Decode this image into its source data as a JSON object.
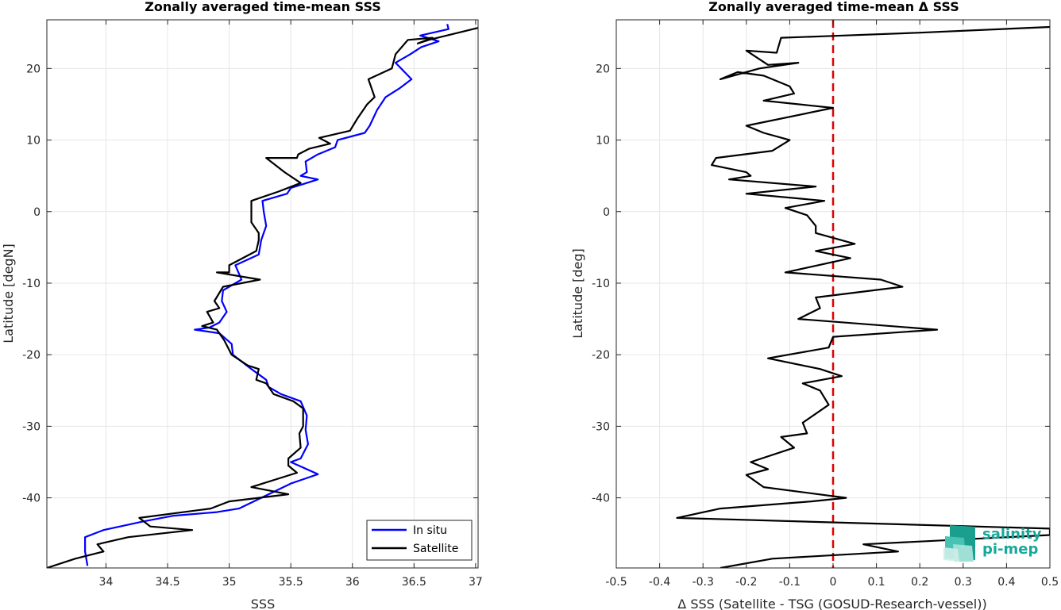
{
  "chart_data": [
    {
      "type": "line",
      "title": "Zonally averaged time-mean SSS",
      "xlabel": "SSS",
      "ylabel": "Latitude [degN]",
      "xlim": [
        33.52,
        37.02
      ],
      "ylim": [
        -49.8,
        26.8
      ],
      "xticks": [
        34,
        34.5,
        35,
        35.5,
        36,
        36.5,
        37
      ],
      "yticks": [
        -40,
        -30,
        -20,
        -10,
        0,
        10,
        20
      ],
      "grid": true,
      "legend_position": "bottom-right",
      "series": [
        {
          "name": "In situ",
          "color": "#0000ff",
          "points": [
            [
              36.77,
              26.2
            ],
            [
              36.78,
              25.5
            ],
            [
              36.55,
              24.6
            ],
            [
              36.7,
              23.8
            ],
            [
              36.56,
              23.0
            ],
            [
              36.47,
              22.0
            ],
            [
              36.35,
              20.8
            ],
            [
              36.48,
              18.5
            ],
            [
              36.38,
              17.2
            ],
            [
              36.27,
              16.0
            ],
            [
              36.2,
              14.2
            ],
            [
              36.14,
              12.0
            ],
            [
              36.1,
              11.0
            ],
            [
              35.88,
              10.0
            ],
            [
              35.86,
              9.0
            ],
            [
              35.72,
              8.0
            ],
            [
              35.62,
              7.0
            ],
            [
              35.63,
              5.5
            ],
            [
              35.58,
              5.0
            ],
            [
              35.72,
              4.5
            ],
            [
              35.5,
              3.3
            ],
            [
              35.47,
              2.5
            ],
            [
              35.27,
              1.5
            ],
            [
              35.28,
              0.0
            ],
            [
              35.3,
              -2.0
            ],
            [
              35.26,
              -4.0
            ],
            [
              35.24,
              -6.0
            ],
            [
              35.05,
              -7.5
            ],
            [
              35.1,
              -9.5
            ],
            [
              34.95,
              -11.0
            ],
            [
              34.94,
              -12.5
            ],
            [
              34.98,
              -14.0
            ],
            [
              34.92,
              -15.5
            ],
            [
              34.84,
              -16.2
            ],
            [
              34.72,
              -16.5
            ],
            [
              34.92,
              -17.0
            ],
            [
              35.02,
              -18.5
            ],
            [
              35.03,
              -20.0
            ],
            [
              35.18,
              -22.0
            ],
            [
              35.3,
              -23.5
            ],
            [
              35.32,
              -24.5
            ],
            [
              35.42,
              -25.5
            ],
            [
              35.58,
              -26.5
            ],
            [
              35.63,
              -28.5
            ],
            [
              35.62,
              -30.5
            ],
            [
              35.64,
              -32.5
            ],
            [
              35.58,
              -34.5
            ],
            [
              35.5,
              -35.0
            ],
            [
              35.72,
              -36.7
            ],
            [
              35.5,
              -38.0
            ],
            [
              35.2,
              -40.5
            ],
            [
              35.08,
              -41.5
            ],
            [
              34.9,
              -42.0
            ],
            [
              34.55,
              -42.5
            ],
            [
              34.3,
              -43.3
            ],
            [
              33.98,
              -44.5
            ],
            [
              33.83,
              -45.5
            ],
            [
              33.83,
              -47.5
            ],
            [
              33.85,
              -49.5
            ]
          ]
        },
        {
          "name": "Satellite",
          "color": "#000000",
          "points": [
            [
              37.05,
              25.8
            ],
            [
              36.62,
              24.0
            ],
            [
              36.53,
              23.5
            ],
            [
              36.65,
              24.3
            ],
            [
              36.45,
              24.0
            ],
            [
              36.35,
              22.0
            ],
            [
              36.32,
              20.0
            ],
            [
              36.13,
              18.5
            ],
            [
              36.18,
              16.0
            ],
            [
              36.12,
              15.0
            ],
            [
              36.04,
              13.0
            ],
            [
              35.98,
              11.3
            ],
            [
              35.73,
              10.3
            ],
            [
              35.82,
              9.5
            ],
            [
              35.65,
              8.8
            ],
            [
              35.56,
              8.0
            ],
            [
              35.55,
              7.5
            ],
            [
              35.3,
              7.5
            ],
            [
              35.45,
              5.5
            ],
            [
              35.58,
              4.0
            ],
            [
              35.4,
              2.8
            ],
            [
              35.18,
              1.5
            ],
            [
              35.18,
              -1.5
            ],
            [
              35.24,
              -3.0
            ],
            [
              35.24,
              -4.0
            ],
            [
              35.22,
              -5.5
            ],
            [
              35.0,
              -7.5
            ],
            [
              35.0,
              -8.5
            ],
            [
              34.9,
              -8.5
            ],
            [
              35.25,
              -9.5
            ],
            [
              34.95,
              -10.5
            ],
            [
              34.88,
              -12.5
            ],
            [
              34.92,
              -13.5
            ],
            [
              34.82,
              -14.0
            ],
            [
              34.87,
              -15.5
            ],
            [
              34.78,
              -16.0
            ],
            [
              34.9,
              -16.5
            ],
            [
              34.96,
              -18.0
            ],
            [
              35.02,
              -20.0
            ],
            [
              35.15,
              -21.5
            ],
            [
              35.24,
              -22.0
            ],
            [
              35.22,
              -23.5
            ],
            [
              35.3,
              -24.0
            ],
            [
              35.36,
              -25.5
            ],
            [
              35.52,
              -26.5
            ],
            [
              35.6,
              -27.5
            ],
            [
              35.6,
              -30.0
            ],
            [
              35.57,
              -31.0
            ],
            [
              35.58,
              -33.0
            ],
            [
              35.48,
              -34.5
            ],
            [
              35.48,
              -35.5
            ],
            [
              35.55,
              -36.5
            ],
            [
              35.18,
              -38.5
            ],
            [
              35.48,
              -39.5
            ],
            [
              35.0,
              -40.5
            ],
            [
              34.85,
              -41.5
            ],
            [
              34.27,
              -42.8
            ],
            [
              34.36,
              -44.0
            ],
            [
              34.7,
              -44.5
            ],
            [
              34.18,
              -45.5
            ],
            [
              33.93,
              -46.5
            ],
            [
              33.98,
              -47.5
            ],
            [
              33.75,
              -48.5
            ],
            [
              33.52,
              -49.8
            ]
          ]
        }
      ]
    },
    {
      "type": "line",
      "title": "Zonally averaged time-mean Δ SSS",
      "xlabel": "Δ SSS (Satellite - TSG (GOSUD-Research-vessel))",
      "ylabel": "Latitude [deg]",
      "xlim": [
        -0.5,
        0.5
      ],
      "ylim": [
        -49.8,
        26.8
      ],
      "xticks": [
        -0.5,
        -0.4,
        -0.3,
        -0.2,
        -0.1,
        0,
        0.1,
        0.2,
        0.3,
        0.4,
        0.5
      ],
      "yticks": [
        -40,
        -30,
        -20,
        -10,
        0,
        10,
        20
      ],
      "grid": true,
      "reference_line": {
        "x": 0,
        "color": "#e00000",
        "style": "dashed"
      },
      "series": [
        {
          "color": "#000000",
          "points": [
            [
              0.5,
              25.8
            ],
            [
              0.2,
              25.0
            ],
            [
              -0.02,
              24.5
            ],
            [
              -0.12,
              24.3
            ],
            [
              -0.13,
              22.2
            ],
            [
              -0.2,
              22.5
            ],
            [
              -0.15,
              20.5
            ],
            [
              -0.08,
              20.8
            ],
            [
              -0.17,
              20.0
            ],
            [
              -0.26,
              18.5
            ],
            [
              -0.22,
              19.5
            ],
            [
              -0.16,
              19.0
            ],
            [
              -0.1,
              17.5
            ],
            [
              -0.09,
              16.5
            ],
            [
              -0.16,
              15.5
            ],
            [
              0.0,
              14.5
            ],
            [
              -0.2,
              12.0
            ],
            [
              -0.16,
              11.0
            ],
            [
              -0.1,
              10.0
            ],
            [
              -0.14,
              8.5
            ],
            [
              -0.27,
              7.5
            ],
            [
              -0.28,
              6.5
            ],
            [
              -0.2,
              5.5
            ],
            [
              -0.19,
              5.0
            ],
            [
              -0.24,
              4.5
            ],
            [
              -0.04,
              3.5
            ],
            [
              -0.2,
              2.5
            ],
            [
              -0.02,
              1.5
            ],
            [
              -0.11,
              0.5
            ],
            [
              -0.06,
              -0.5
            ],
            [
              -0.04,
              -2.0
            ],
            [
              -0.04,
              -3.0
            ],
            [
              0.05,
              -4.5
            ],
            [
              -0.04,
              -5.5
            ],
            [
              0.04,
              -6.5
            ],
            [
              -0.11,
              -8.5
            ],
            [
              0.11,
              -9.5
            ],
            [
              0.16,
              -10.5
            ],
            [
              -0.04,
              -12.0
            ],
            [
              -0.03,
              -13.5
            ],
            [
              -0.08,
              -15.0
            ],
            [
              0.24,
              -16.5
            ],
            [
              0.0,
              -17.5
            ],
            [
              -0.01,
              -19.0
            ],
            [
              -0.15,
              -20.5
            ],
            [
              -0.03,
              -22.0
            ],
            [
              0.02,
              -23.0
            ],
            [
              -0.07,
              -24.0
            ],
            [
              -0.03,
              -25.0
            ],
            [
              -0.01,
              -27.0
            ],
            [
              -0.07,
              -29.5
            ],
            [
              -0.06,
              -31.0
            ],
            [
              -0.12,
              -31.5
            ],
            [
              -0.09,
              -33.0
            ],
            [
              -0.19,
              -35.0
            ],
            [
              -0.15,
              -36.0
            ],
            [
              -0.2,
              -36.8
            ],
            [
              -0.16,
              -38.5
            ],
            [
              0.03,
              -40.0
            ],
            [
              -0.05,
              -40.5
            ],
            [
              -0.26,
              -41.5
            ],
            [
              -0.36,
              -42.8
            ],
            [
              0.5,
              -44.3
            ],
            [
              0.5,
              -45.2
            ],
            [
              0.07,
              -46.5
            ],
            [
              0.15,
              -47.5
            ],
            [
              -0.14,
              -48.5
            ],
            [
              -0.26,
              -49.8
            ]
          ]
        }
      ]
    }
  ],
  "logo": {
    "line1": "salinity",
    "line2": "pi-mep",
    "color": "#16a89a"
  }
}
